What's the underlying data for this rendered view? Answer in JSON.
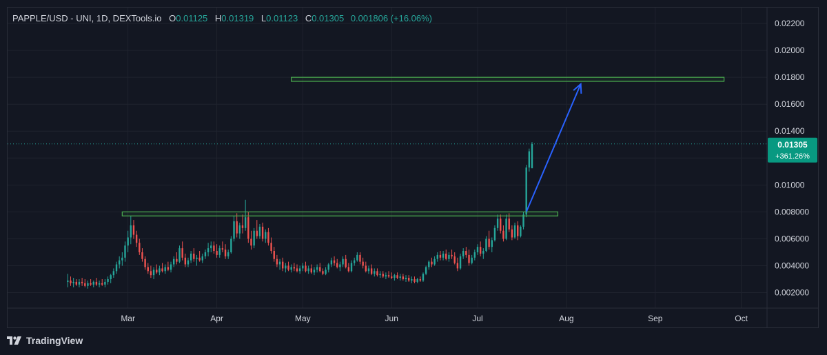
{
  "header": {
    "symbol": "PAPPLE/USD - UNI, 1D, DEXTools.io",
    "o_label": "O",
    "o_value": "0.01125",
    "h_label": "H",
    "h_value": "0.01319",
    "l_label": "L",
    "l_value": "0.01123",
    "c_label": "C",
    "c_value": "0.01305",
    "change": "0.001806 (+16.06%)"
  },
  "price_badge": {
    "price": "0.01305",
    "change_pct": "+361.26%"
  },
  "brand": {
    "name": "TradingView",
    "icon": "tradingview-logo-icon"
  },
  "colors": {
    "up": "#26a69a",
    "down": "#ef5350",
    "box": "#4caf50",
    "arrow": "#2962ff",
    "badge": "#089981",
    "background": "#131722"
  },
  "chart_data": {
    "type": "candlestick",
    "title": "PAPPLE/USD - UNI, 1D, DEXTools.io",
    "y_ticks": [
      0.002,
      0.004,
      0.006,
      0.008,
      0.01,
      0.012,
      0.014,
      0.016,
      0.018,
      0.02,
      0.022
    ],
    "y_tick_labels": [
      "0.002000",
      "0.004000",
      "0.006000",
      "0.008000",
      "0.01000",
      "0.01200",
      "0.01400",
      "0.01600",
      "0.01800",
      "0.02000",
      "0.02200"
    ],
    "x_ticks": [
      "2024-03-01",
      "2024-04-01",
      "2024-05-01",
      "2024-06-01",
      "2024-07-01",
      "2024-08-01",
      "2024-09-01",
      "2024-10-01"
    ],
    "x_tick_labels": [
      "Mar",
      "Apr",
      "May",
      "Jun",
      "Jul",
      "Aug",
      "Sep",
      "Oct"
    ],
    "x_range": [
      "2024-01-19",
      "2024-10-10"
    ],
    "y_range": [
      0.00085,
      0.02318
    ],
    "last_price": 0.01305,
    "last_change_pct": "+361.26%",
    "annotations": [
      {
        "type": "rectangle",
        "from": "2024-02-28",
        "to": "2024-07-29",
        "low": 0.0077,
        "high": 0.008
      },
      {
        "type": "rectangle",
        "from": "2024-04-27",
        "to": "2024-09-25",
        "low": 0.0177,
        "high": 0.018
      },
      {
        "type": "arrow",
        "from_date": "2024-07-18",
        "from_price": 0.008,
        "to_date": "2024-08-06",
        "to_price": 0.0175
      }
    ],
    "candles_note": "daily OHLC, estimated",
    "candles": [
      [
        "2024-02-09",
        0.0028,
        0.0034,
        0.0024,
        0.0029
      ],
      [
        "2024-02-10",
        0.0029,
        0.0032,
        0.0025,
        0.0027
      ],
      [
        "2024-02-11",
        0.0027,
        0.0031,
        0.0024,
        0.0028
      ],
      [
        "2024-02-12",
        0.0028,
        0.003,
        0.0025,
        0.0026
      ],
      [
        "2024-02-13",
        0.0026,
        0.003,
        0.0024,
        0.0028
      ],
      [
        "2024-02-14",
        0.0028,
        0.0031,
        0.0025,
        0.0027
      ],
      [
        "2024-02-15",
        0.0027,
        0.003,
        0.0024,
        0.0025
      ],
      [
        "2024-02-16",
        0.0025,
        0.0029,
        0.0023,
        0.0027
      ],
      [
        "2024-02-17",
        0.0027,
        0.003,
        0.0025,
        0.0026
      ],
      [
        "2024-02-18",
        0.0026,
        0.0029,
        0.0024,
        0.0028
      ],
      [
        "2024-02-19",
        0.0028,
        0.0031,
        0.0025,
        0.0026
      ],
      [
        "2024-02-20",
        0.0026,
        0.0029,
        0.0024,
        0.0027
      ],
      [
        "2024-02-21",
        0.0027,
        0.003,
        0.0025,
        0.0026
      ],
      [
        "2024-02-22",
        0.0026,
        0.003,
        0.0024,
        0.0028
      ],
      [
        "2024-02-23",
        0.0028,
        0.0032,
        0.0026,
        0.003
      ],
      [
        "2024-02-24",
        0.003,
        0.0034,
        0.0027,
        0.0033
      ],
      [
        "2024-02-25",
        0.0033,
        0.0038,
        0.0031,
        0.0036
      ],
      [
        "2024-02-26",
        0.0036,
        0.0043,
        0.0034,
        0.0041
      ],
      [
        "2024-02-27",
        0.0041,
        0.0047,
        0.0038,
        0.0044
      ],
      [
        "2024-02-28",
        0.0044,
        0.005,
        0.004,
        0.0046
      ],
      [
        "2024-02-29",
        0.0046,
        0.0058,
        0.0043,
        0.0055
      ],
      [
        "2024-03-01",
        0.0055,
        0.0066,
        0.005,
        0.0061
      ],
      [
        "2024-03-02",
        0.0061,
        0.0077,
        0.0056,
        0.007
      ],
      [
        "2024-03-03",
        0.007,
        0.0074,
        0.006,
        0.0063
      ],
      [
        "2024-03-04",
        0.0063,
        0.0066,
        0.0054,
        0.0057
      ],
      [
        "2024-03-05",
        0.0057,
        0.006,
        0.0048,
        0.005
      ],
      [
        "2024-03-06",
        0.005,
        0.0053,
        0.0043,
        0.0045
      ],
      [
        "2024-03-07",
        0.0045,
        0.0047,
        0.0037,
        0.0039
      ],
      [
        "2024-03-08",
        0.0039,
        0.0042,
        0.0034,
        0.0036
      ],
      [
        "2024-03-09",
        0.0036,
        0.004,
        0.0031,
        0.0033
      ],
      [
        "2024-03-10",
        0.0033,
        0.0039,
        0.003,
        0.0037
      ],
      [
        "2024-03-11",
        0.0037,
        0.0041,
        0.0034,
        0.0035
      ],
      [
        "2024-03-12",
        0.0035,
        0.004,
        0.0033,
        0.0038
      ],
      [
        "2024-03-13",
        0.0038,
        0.0042,
        0.0035,
        0.0036
      ],
      [
        "2024-03-14",
        0.0036,
        0.0041,
        0.0034,
        0.0039
      ],
      [
        "2024-03-15",
        0.0039,
        0.0043,
        0.0036,
        0.0037
      ],
      [
        "2024-03-16",
        0.0037,
        0.0043,
        0.0035,
        0.0041
      ],
      [
        "2024-03-17",
        0.0041,
        0.0047,
        0.0039,
        0.0045
      ],
      [
        "2024-03-18",
        0.0045,
        0.005,
        0.0041,
        0.0043
      ],
      [
        "2024-03-19",
        0.0043,
        0.0055,
        0.0042,
        0.0053
      ],
      [
        "2024-03-20",
        0.0053,
        0.0058,
        0.0044,
        0.0046
      ],
      [
        "2024-03-21",
        0.0046,
        0.0049,
        0.0039,
        0.0041
      ],
      [
        "2024-03-22",
        0.0041,
        0.0046,
        0.0039,
        0.0044
      ],
      [
        "2024-03-23",
        0.0044,
        0.0051,
        0.0042,
        0.0049
      ],
      [
        "2024-03-24",
        0.0049,
        0.0053,
        0.0043,
        0.0045
      ],
      [
        "2024-03-25",
        0.0045,
        0.0048,
        0.004,
        0.0046
      ],
      [
        "2024-03-26",
        0.0046,
        0.0051,
        0.0043,
        0.0044
      ],
      [
        "2024-03-27",
        0.0044,
        0.0049,
        0.0042,
        0.0047
      ],
      [
        "2024-03-28",
        0.0047,
        0.0052,
        0.0045,
        0.005
      ],
      [
        "2024-03-29",
        0.005,
        0.0057,
        0.0047,
        0.0053
      ],
      [
        "2024-03-30",
        0.0053,
        0.0058,
        0.005,
        0.0055
      ],
      [
        "2024-03-31",
        0.0055,
        0.0058,
        0.0049,
        0.0051
      ],
      [
        "2024-04-01",
        0.0051,
        0.0056,
        0.0046,
        0.0048
      ],
      [
        "2024-04-02",
        0.0048,
        0.0055,
        0.0046,
        0.0053
      ],
      [
        "2024-04-03",
        0.0053,
        0.0058,
        0.005,
        0.0052
      ],
      [
        "2024-04-04",
        0.0052,
        0.0056,
        0.0045,
        0.0047
      ],
      [
        "2024-04-05",
        0.0047,
        0.0052,
        0.0045,
        0.005
      ],
      [
        "2024-04-06",
        0.005,
        0.0062,
        0.0049,
        0.006
      ],
      [
        "2024-04-07",
        0.006,
        0.0077,
        0.0058,
        0.0073
      ],
      [
        "2024-04-08",
        0.0073,
        0.0079,
        0.0061,
        0.0064
      ],
      [
        "2024-04-09",
        0.0064,
        0.0072,
        0.006,
        0.007
      ],
      [
        "2024-04-10",
        0.007,
        0.0078,
        0.0064,
        0.0068
      ],
      [
        "2024-04-11",
        0.0068,
        0.0089,
        0.0066,
        0.0076
      ],
      [
        "2024-04-12",
        0.0076,
        0.008,
        0.0057,
        0.006
      ],
      [
        "2024-04-13",
        0.006,
        0.0066,
        0.0052,
        0.0055
      ],
      [
        "2024-04-14",
        0.0055,
        0.0068,
        0.0053,
        0.0066
      ],
      [
        "2024-04-15",
        0.0066,
        0.0074,
        0.006,
        0.0062
      ],
      [
        "2024-04-16",
        0.0062,
        0.0071,
        0.006,
        0.0069
      ],
      [
        "2024-04-17",
        0.0069,
        0.0072,
        0.0058,
        0.006
      ],
      [
        "2024-04-18",
        0.006,
        0.0067,
        0.0057,
        0.0065
      ],
      [
        "2024-04-19",
        0.0065,
        0.0068,
        0.0055,
        0.0057
      ],
      [
        "2024-04-20",
        0.0057,
        0.0061,
        0.0049,
        0.0051
      ],
      [
        "2024-04-21",
        0.0051,
        0.0054,
        0.0043,
        0.0045
      ],
      [
        "2024-04-22",
        0.0045,
        0.0048,
        0.0039,
        0.0041
      ],
      [
        "2024-04-23",
        0.0041,
        0.0045,
        0.0037,
        0.0043
      ],
      [
        "2024-04-24",
        0.0043,
        0.0046,
        0.0036,
        0.0038
      ],
      [
        "2024-04-25",
        0.0038,
        0.0042,
        0.0035,
        0.004
      ],
      [
        "2024-04-26",
        0.004,
        0.0043,
        0.0036,
        0.0037
      ],
      [
        "2024-04-27",
        0.0037,
        0.0041,
        0.0035,
        0.0039
      ],
      [
        "2024-04-28",
        0.0039,
        0.0042,
        0.0036,
        0.0038
      ],
      [
        "2024-04-29",
        0.0038,
        0.0041,
        0.0035,
        0.0036
      ],
      [
        "2024-04-30",
        0.0036,
        0.004,
        0.0034,
        0.0038
      ],
      [
        "2024-05-01",
        0.0038,
        0.0042,
        0.0036,
        0.004
      ],
      [
        "2024-05-02",
        0.004,
        0.0043,
        0.0035,
        0.0036
      ],
      [
        "2024-05-03",
        0.0036,
        0.004,
        0.0034,
        0.0038
      ],
      [
        "2024-05-04",
        0.0038,
        0.0041,
        0.0034,
        0.0035
      ],
      [
        "2024-05-05",
        0.0035,
        0.0039,
        0.0033,
        0.0037
      ],
      [
        "2024-05-06",
        0.0037,
        0.0041,
        0.0035,
        0.0039
      ],
      [
        "2024-05-07",
        0.0039,
        0.0042,
        0.0035,
        0.0036
      ],
      [
        "2024-05-08",
        0.0036,
        0.0038,
        0.0033,
        0.0034
      ],
      [
        "2024-05-09",
        0.0034,
        0.0039,
        0.0033,
        0.0037
      ],
      [
        "2024-05-10",
        0.0037,
        0.0042,
        0.0035,
        0.0041
      ],
      [
        "2024-05-11",
        0.0041,
        0.0046,
        0.0039,
        0.0044
      ],
      [
        "2024-05-12",
        0.0044,
        0.0047,
        0.004,
        0.0042
      ],
      [
        "2024-05-13",
        0.0042,
        0.0045,
        0.0038,
        0.0039
      ],
      [
        "2024-05-14",
        0.0039,
        0.0043,
        0.0036,
        0.0041
      ],
      [
        "2024-05-15",
        0.0041,
        0.0047,
        0.0039,
        0.0045
      ],
      [
        "2024-05-16",
        0.0045,
        0.0048,
        0.0038,
        0.0039
      ],
      [
        "2024-05-17",
        0.0039,
        0.0042,
        0.0035,
        0.0036
      ],
      [
        "2024-05-18",
        0.0036,
        0.0044,
        0.0035,
        0.0042
      ],
      [
        "2024-05-19",
        0.0042,
        0.0046,
        0.004,
        0.0044
      ],
      [
        "2024-05-20",
        0.0044,
        0.005,
        0.0043,
        0.0048
      ],
      [
        "2024-05-21",
        0.0048,
        0.005,
        0.0041,
        0.0043
      ],
      [
        "2024-05-22",
        0.0043,
        0.0046,
        0.0038,
        0.004
      ],
      [
        "2024-05-23",
        0.004,
        0.0043,
        0.0035,
        0.0036
      ],
      [
        "2024-05-24",
        0.0036,
        0.004,
        0.0034,
        0.0038
      ],
      [
        "2024-05-25",
        0.0038,
        0.0041,
        0.0033,
        0.0034
      ],
      [
        "2024-05-26",
        0.0034,
        0.0038,
        0.0032,
        0.0036
      ],
      [
        "2024-05-27",
        0.0036,
        0.0038,
        0.0032,
        0.0033
      ],
      [
        "2024-05-28",
        0.0033,
        0.0036,
        0.0031,
        0.0034
      ],
      [
        "2024-05-29",
        0.0034,
        0.0036,
        0.0031,
        0.0032
      ],
      [
        "2024-05-30",
        0.0032,
        0.0035,
        0.003,
        0.0033
      ],
      [
        "2024-05-31",
        0.0033,
        0.0036,
        0.0031,
        0.0032
      ],
      [
        "2024-06-01",
        0.0032,
        0.0035,
        0.003,
        0.0031
      ],
      [
        "2024-06-02",
        0.0031,
        0.0034,
        0.0029,
        0.0033
      ],
      [
        "2024-06-03",
        0.0033,
        0.0035,
        0.003,
        0.0031
      ],
      [
        "2024-06-04",
        0.0031,
        0.0034,
        0.0029,
        0.0032
      ],
      [
        "2024-06-05",
        0.0032,
        0.0034,
        0.0029,
        0.003
      ],
      [
        "2024-06-06",
        0.003,
        0.0033,
        0.0028,
        0.0031
      ],
      [
        "2024-06-07",
        0.0031,
        0.0033,
        0.0028,
        0.0029
      ],
      [
        "2024-06-08",
        0.0029,
        0.0032,
        0.0027,
        0.003
      ],
      [
        "2024-06-09",
        0.003,
        0.0032,
        0.0027,
        0.0028
      ],
      [
        "2024-06-10",
        0.0028,
        0.0031,
        0.0027,
        0.003
      ],
      [
        "2024-06-11",
        0.003,
        0.0032,
        0.0028,
        0.0029
      ],
      [
        "2024-06-12",
        0.0029,
        0.0035,
        0.0028,
        0.0034
      ],
      [
        "2024-06-13",
        0.0034,
        0.004,
        0.0033,
        0.0039
      ],
      [
        "2024-06-14",
        0.0039,
        0.0044,
        0.0037,
        0.0043
      ],
      [
        "2024-06-15",
        0.0043,
        0.0046,
        0.0039,
        0.0041
      ],
      [
        "2024-06-16",
        0.0041,
        0.0047,
        0.004,
        0.0045
      ],
      [
        "2024-06-17",
        0.0045,
        0.005,
        0.0043,
        0.0048
      ],
      [
        "2024-06-18",
        0.0048,
        0.0051,
        0.0044,
        0.0046
      ],
      [
        "2024-06-19",
        0.0046,
        0.0051,
        0.0044,
        0.0049
      ],
      [
        "2024-06-20",
        0.0049,
        0.0052,
        0.0044,
        0.0045
      ],
      [
        "2024-06-21",
        0.0045,
        0.005,
        0.0043,
        0.0048
      ],
      [
        "2024-06-22",
        0.0048,
        0.0052,
        0.0045,
        0.0047
      ],
      [
        "2024-06-23",
        0.0047,
        0.005,
        0.0041,
        0.0042
      ],
      [
        "2024-06-24",
        0.0042,
        0.0046,
        0.0036,
        0.0038
      ],
      [
        "2024-06-25",
        0.0038,
        0.0049,
        0.0037,
        0.0047
      ],
      [
        "2024-06-26",
        0.0047,
        0.0053,
        0.0045,
        0.0051
      ],
      [
        "2024-06-27",
        0.0051,
        0.0054,
        0.0046,
        0.0048
      ],
      [
        "2024-06-28",
        0.0048,
        0.0052,
        0.004,
        0.0042
      ],
      [
        "2024-06-29",
        0.0042,
        0.0048,
        0.0041,
        0.0046
      ],
      [
        "2024-06-30",
        0.0046,
        0.0052,
        0.0044,
        0.005
      ],
      [
        "2024-07-01",
        0.005,
        0.0056,
        0.0048,
        0.0054
      ],
      [
        "2024-07-02",
        0.0054,
        0.0058,
        0.0047,
        0.0049
      ],
      [
        "2024-07-03",
        0.0049,
        0.0053,
        0.0045,
        0.0051
      ],
      [
        "2024-07-04",
        0.0051,
        0.0062,
        0.005,
        0.006
      ],
      [
        "2024-07-05",
        0.006,
        0.0066,
        0.0052,
        0.0054
      ],
      [
        "2024-07-06",
        0.0054,
        0.0061,
        0.005,
        0.0059
      ],
      [
        "2024-07-07",
        0.0059,
        0.007,
        0.0058,
        0.0068
      ],
      [
        "2024-07-08",
        0.0068,
        0.0078,
        0.0066,
        0.0075
      ],
      [
        "2024-07-09",
        0.0075,
        0.0078,
        0.0064,
        0.0066
      ],
      [
        "2024-07-10",
        0.0066,
        0.007,
        0.0058,
        0.006
      ],
      [
        "2024-07-11",
        0.006,
        0.0078,
        0.0059,
        0.0075
      ],
      [
        "2024-07-12",
        0.0075,
        0.0079,
        0.0065,
        0.0067
      ],
      [
        "2024-07-13",
        0.0067,
        0.007,
        0.0059,
        0.0061
      ],
      [
        "2024-07-14",
        0.0061,
        0.0072,
        0.006,
        0.007
      ],
      [
        "2024-07-15",
        0.007,
        0.0073,
        0.0059,
        0.0062
      ],
      [
        "2024-07-16",
        0.0062,
        0.007,
        0.0061,
        0.0069
      ],
      [
        "2024-07-17",
        0.0069,
        0.008,
        0.0067,
        0.0078
      ],
      [
        "2024-07-18",
        0.0078,
        0.0115,
        0.0076,
        0.0113
      ],
      [
        "2024-07-19",
        0.0113,
        0.0127,
        0.011,
        0.0125
      ],
      [
        "2024-07-20",
        0.01125,
        0.01319,
        0.01123,
        0.01305
      ]
    ]
  }
}
